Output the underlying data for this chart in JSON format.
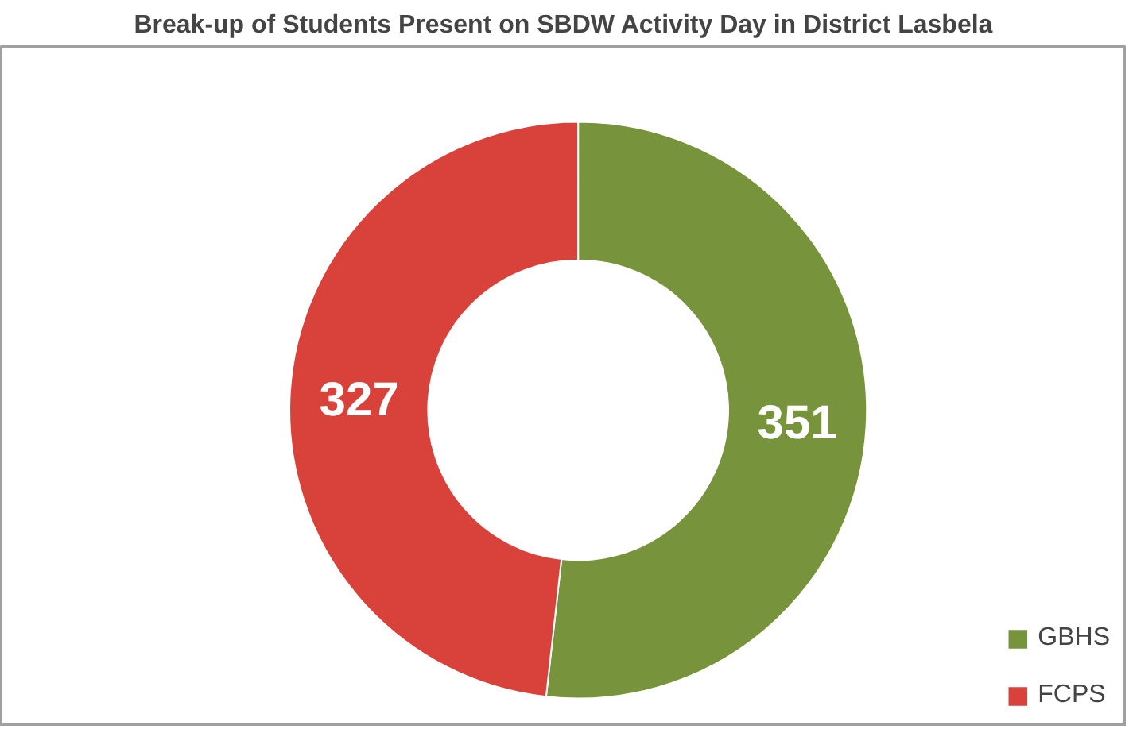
{
  "chart_data": {
    "type": "donut",
    "title": "Break-up of Students Present on SBDW Activity Day in District Lasbela",
    "categories": [
      "GBHS",
      "FCPS"
    ],
    "values": [
      351,
      327
    ],
    "colors": [
      "#77933c",
      "#d9423b"
    ],
    "data_labels": true,
    "legend": "bottom right"
  }
}
